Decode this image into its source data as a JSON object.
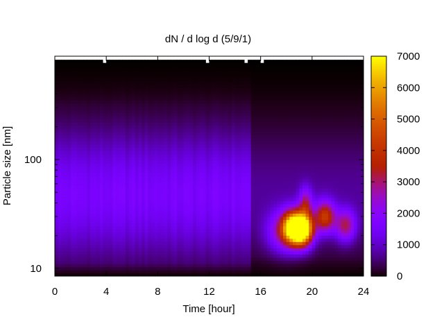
{
  "chart_data": {
    "type": "heatmap",
    "title": "dN / d log d (5/9/1)",
    "xlabel": "Time [hour]",
    "ylabel": "Particle size [nm]",
    "xlim": [
      0,
      24
    ],
    "ylim": [
      8.5,
      890
    ],
    "y_scale": "log",
    "x_ticks": [
      0,
      4,
      8,
      12,
      16,
      20,
      24
    ],
    "y_ticks": [
      10,
      100
    ],
    "colorbar": {
      "range": [
        0,
        7000
      ],
      "ticks": [
        0,
        1000,
        2000,
        3000,
        4000,
        5000,
        6000,
        7000
      ],
      "colormap": "gnuplot (black-purple-red-orange-yellow)"
    },
    "colors": {
      "frame": "#000000",
      "background": "#ffffff"
    },
    "features": [
      {
        "description_type": "baseline",
        "x_range": [
          0,
          15.3
        ],
        "y_range": [
          15,
          120
        ],
        "value": 1600
      },
      {
        "description_type": "sharp drop",
        "x": 15.3
      },
      {
        "description_type": "growth event peak",
        "x": 19.3,
        "y": 23,
        "value": 7000
      },
      {
        "description_type": "secondary maximum",
        "x": 18.5,
        "y": 24,
        "value": 5200
      },
      {
        "description_type": "secondary maximum",
        "x": 21.0,
        "y": 30,
        "value": 3600
      },
      {
        "description_type": "secondary maximum",
        "x": 22.6,
        "y": 25,
        "value": 2600
      }
    ]
  }
}
